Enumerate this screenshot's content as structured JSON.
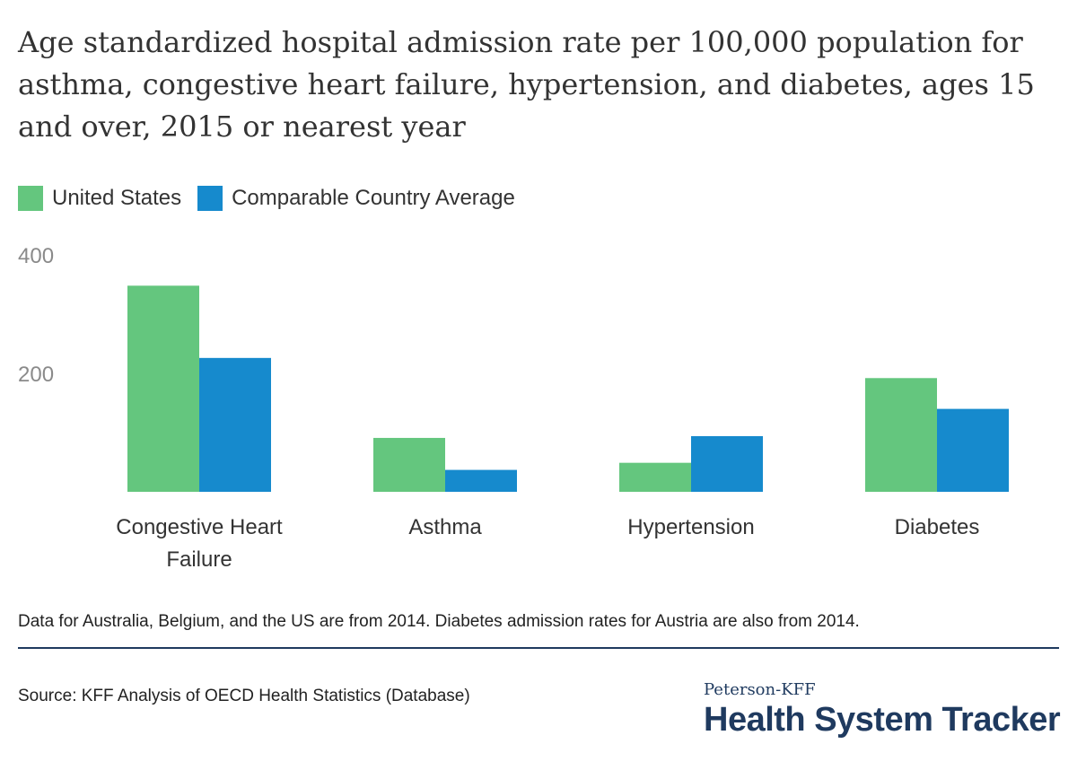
{
  "header": {
    "title": "Age standardized hospital admission rate per 100,000 population for asthma, congestive heart failure, hypertension, and diabetes, ages 15 and over, 2015 or nearest year"
  },
  "chart_data": {
    "type": "bar",
    "categories": [
      [
        "Congestive Heart",
        "Failure"
      ],
      [
        "Asthma"
      ],
      [
        "Hypertension"
      ],
      [
        "Diabetes"
      ]
    ],
    "series": [
      {
        "name": "United States",
        "color": "#64c67e",
        "values": [
          348,
          91,
          49,
          192
        ]
      },
      {
        "name": "Comparable Country Average",
        "color": "#168acd",
        "values": [
          226,
          37,
          94,
          140
        ]
      }
    ],
    "y_ticks": [
      200,
      400
    ],
    "ylim": [
      0,
      400
    ],
    "grid": false,
    "legend_position": "top-left"
  },
  "footer": {
    "note": "Data for Australia, Belgium, and the US are from 2014. Diabetes admission rates for Austria are also from 2014.",
    "source": "Source: KFF Analysis of OECD Health Statistics (Database)",
    "brand_top": "Peterson-KFF",
    "brand_main": "Health System Tracker"
  }
}
